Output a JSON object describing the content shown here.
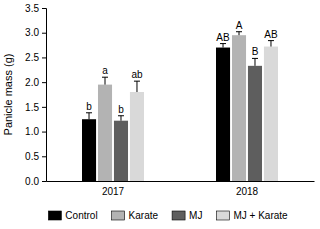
{
  "chart_data": {
    "type": "bar",
    "y_label": "Panicle mass (g)",
    "categories": [
      "2017",
      "2018"
    ],
    "series": [
      {
        "name": "Control",
        "color": "#000000",
        "values": [
          1.25,
          2.7
        ],
        "errors": [
          0.13,
          0.08
        ],
        "letters": [
          "b",
          "AB"
        ]
      },
      {
        "name": "Karate",
        "color": "#b3b3b3",
        "values": [
          1.95,
          2.95
        ],
        "errors": [
          0.15,
          0.07
        ],
        "letters": [
          "a",
          "A"
        ]
      },
      {
        "name": "MJ",
        "color": "#5e5e5e",
        "values": [
          1.22,
          2.33
        ],
        "errors": [
          0.1,
          0.15
        ],
        "letters": [
          "b",
          "B"
        ]
      },
      {
        "name": "MJ + Karate",
        "color": "#d9d9d9",
        "values": [
          1.8,
          2.72
        ],
        "errors": [
          0.22,
          0.12
        ],
        "letters": [
          "ab",
          "AB"
        ]
      }
    ],
    "ylim": [
      0,
      3.5
    ],
    "yticks": [
      {
        "value": 0,
        "label": "0.0"
      },
      0.5,
      {
        "value": 1,
        "label": "1.0"
      },
      1.5,
      {
        "value": 2,
        "label": "2.0"
      },
      2.5,
      {
        "value": 3,
        "label": "3.0"
      },
      3.5
    ],
    "legend": "bottom"
  }
}
